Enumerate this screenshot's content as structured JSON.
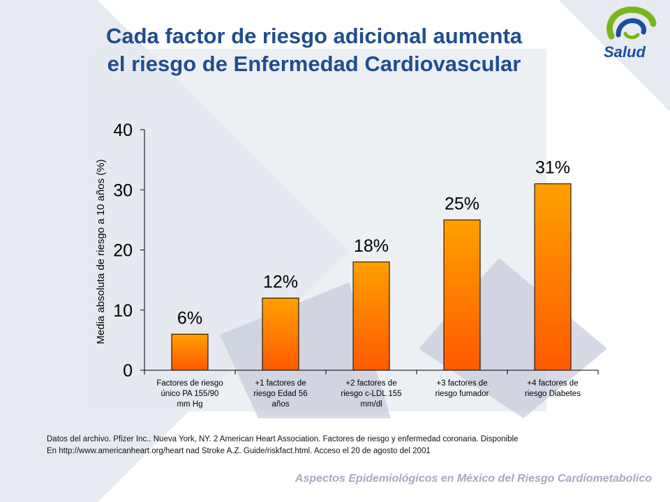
{
  "slide": {
    "title_lines": [
      "Cada factor de riesgo adicional aumenta",
      "el  riesgo de Enfermedad Cardiovascular"
    ],
    "logo_text": "Salud",
    "source_lines": [
      "Datos del archivo. Pfizer Inc.. Nueva York, NY. 2 American  Heart Association. Factores de riesgo y enfermedad coronaria. Disponible",
      "En http://www.americanheart.org/heart  nad Stroke A.Z. Guide/riskfact.html. Acceso el 20 de agosto del 2001"
    ],
    "footer": "Aspectos Epidemiológicos en México del Riesgo Cardiometabolico",
    "colors": {
      "title": "#1f4e8c",
      "bar_top": "#ffa000",
      "bar_bottom": "#ff5a00",
      "logo_green": "#7ab51d",
      "logo_blue": "#1a4fa0",
      "footer": "#a8a8c0"
    }
  },
  "chart_data": {
    "type": "bar",
    "categories": [
      [
        "Factores de riesgo",
        "único PA 155/90",
        "mm Hg"
      ],
      [
        "+1 factores de",
        "riesgo Edad 56",
        "años"
      ],
      [
        "+2 factores de",
        "riesgo c-LDL 155",
        "mm/dl"
      ],
      [
        "+3 factores de",
        "riesgo fumador"
      ],
      [
        "+4 factores de",
        "riesgo Diabetes"
      ]
    ],
    "values": [
      6,
      12,
      18,
      25,
      31
    ],
    "data_labels": [
      "6%",
      "12%",
      "18%",
      "25%",
      "31%"
    ],
    "ylabel": "Media absoluta de riesgo a 10 años (%)",
    "xlabel": "",
    "ylim": [
      0,
      40
    ],
    "yticks": [
      0,
      10,
      20,
      30,
      40
    ],
    "grid": false,
    "legend": "none"
  }
}
